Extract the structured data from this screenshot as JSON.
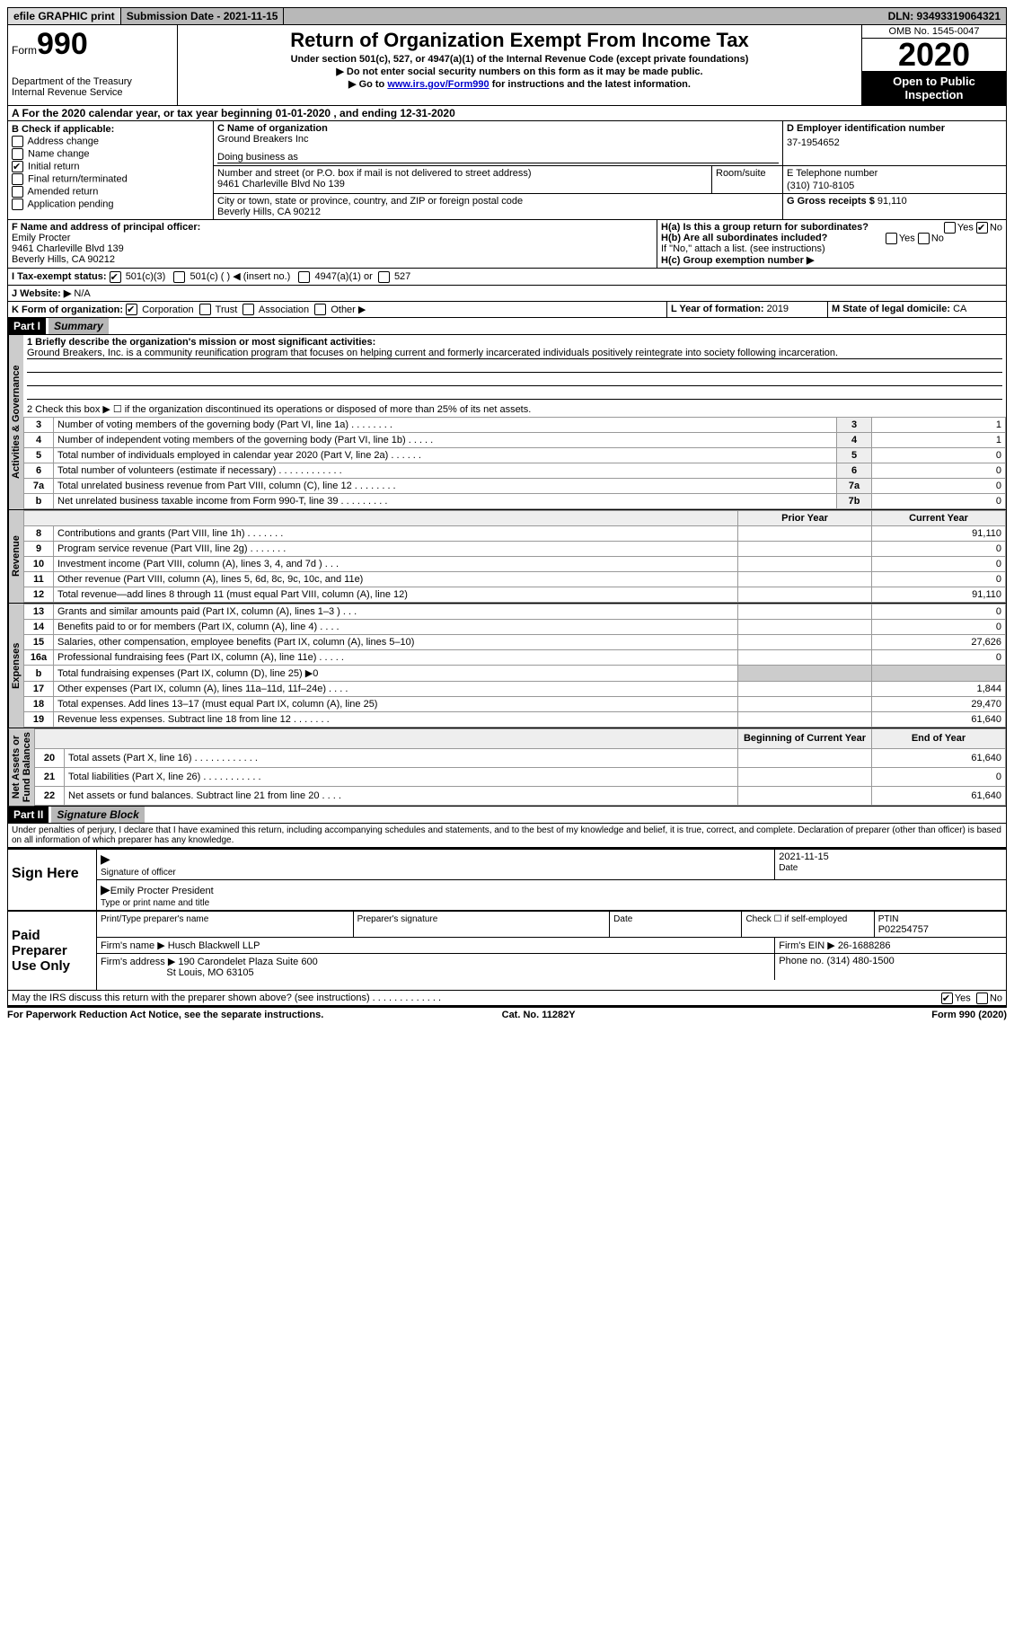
{
  "topbar": {
    "efile": "efile GRAPHIC print",
    "submission": "Submission Date - 2021-11-15",
    "dln": "DLN: 93493319064321"
  },
  "header": {
    "form_small": "Form",
    "form_big": "990",
    "title": "Return of Organization Exempt From Income Tax",
    "sub1": "Under section 501(c), 527, or 4947(a)(1) of the Internal Revenue Code (except private foundations)",
    "sub2": "▶ Do not enter social security numbers on this form as it may be made public.",
    "sub3_a": "▶ Go to ",
    "sub3_link": "www.irs.gov/Form990",
    "sub3_b": " for instructions and the latest information.",
    "dept": "Department of the Treasury\nInternal Revenue Service",
    "omb": "OMB No. 1545-0047",
    "year": "2020",
    "open": "Open to Public Inspection"
  },
  "secA": "A For the 2020 calendar year, or tax year beginning 01-01-2020    , and ending 12-31-2020",
  "boxB": {
    "label": "B Check if applicable:",
    "items": [
      "Address change",
      "Name change",
      "Initial return",
      "Final return/terminated",
      "Amended return",
      "Application pending"
    ],
    "checked_idx": 2
  },
  "boxC": {
    "label": "C Name of organization",
    "org": "Ground Breakers Inc",
    "dba_label": "Doing business as",
    "street_label": "Number and street (or P.O. box if mail is not delivered to street address)",
    "room_label": "Room/suite",
    "street": "9461 Charleville Blvd No 139",
    "city_label": "City or town, state or province, country, and ZIP or foreign postal code",
    "city": "Beverly Hills, CA  90212"
  },
  "boxD": {
    "label": "D Employer identification number",
    "val": "37-1954652"
  },
  "boxE": {
    "label": "E Telephone number",
    "val": "(310) 710-8105"
  },
  "boxG": {
    "label": "G Gross receipts $",
    "val": "91,110"
  },
  "boxF": {
    "label": "F Name and address of principal officer:",
    "name": "Emily Procter",
    "addr1": "9461 Charleville Blvd 139",
    "addr2": "Beverly Hills, CA  90212"
  },
  "boxH": {
    "ha": "H(a)  Is this a group return for subordinates?",
    "hb": "H(b)  Are all subordinates included?",
    "hb_note": "If \"No,\" attach a list. (see instructions)",
    "hc": "H(c)  Group exemption number ▶",
    "yes": "Yes",
    "no": "No"
  },
  "boxI": {
    "label": "I Tax-exempt status:",
    "o1": "501(c)(3)",
    "o2": "501(c) (  ) ◀ (insert no.)",
    "o3": "4947(a)(1) or",
    "o4": "527"
  },
  "boxJ": {
    "label": "J   Website: ▶",
    "val": "N/A"
  },
  "boxK": {
    "label": "K Form of organization:",
    "o1": "Corporation",
    "o2": "Trust",
    "o3": "Association",
    "o4": "Other ▶"
  },
  "boxL": {
    "label": "L Year of formation:",
    "val": "2019"
  },
  "boxM": {
    "label": "M State of legal domicile:",
    "val": "CA"
  },
  "part1": {
    "num": "Part I",
    "title": "Summary"
  },
  "mission": {
    "line": "1  Briefly describe the organization's mission or most significant activities:",
    "text": "Ground Breakers, Inc. is a community reunification program that focuses on helping current and formerly incarcerated individuals positively reintegrate into society following incarceration."
  },
  "line2": "2    Check this box ▶ ☐  if the organization discontinued its operations or disposed of more than 25% of its net assets.",
  "gov_rows": [
    {
      "n": "3",
      "d": "Number of voting members of the governing body (Part VI, line 1a)   .    .    .    .    .    .    .    .",
      "rn": "3",
      "v": "1"
    },
    {
      "n": "4",
      "d": "Number of independent voting members of the governing body (Part VI, line 1b)    .    .    .    .    .",
      "rn": "4",
      "v": "1"
    },
    {
      "n": "5",
      "d": "Total number of individuals employed in calendar year 2020 (Part V, line 2a)    .    .    .    .    .    .",
      "rn": "5",
      "v": "0"
    },
    {
      "n": "6",
      "d": "Total number of volunteers (estimate if necessary)    .    .    .    .    .    .    .    .    .    .    .    .",
      "rn": "6",
      "v": "0"
    },
    {
      "n": "7a",
      "d": "Total unrelated business revenue from Part VIII, column (C), line 12   .    .    .    .    .    .    .    .",
      "rn": "7a",
      "v": "0"
    },
    {
      "n": "b",
      "d": "Net unrelated business taxable income from Form 990-T, line 39   .    .    .    .    .    .    .    .    .",
      "rn": "7b",
      "v": "0"
    }
  ],
  "col_hdr": {
    "prior": "Prior Year",
    "curr": "Current Year",
    "boy": "Beginning of Current Year",
    "eoy": "End of Year"
  },
  "rev_rows": [
    {
      "n": "8",
      "d": "Contributions and grants (Part VIII, line 1h)   .    .    .    .    .    .    .",
      "p": "",
      "c": "91,110"
    },
    {
      "n": "9",
      "d": "Program service revenue (Part VIII, line 2g)   .    .    .    .    .    .    .",
      "p": "",
      "c": "0"
    },
    {
      "n": "10",
      "d": "Investment income (Part VIII, column (A), lines 3, 4, and 7d )   .    .    .",
      "p": "",
      "c": "0"
    },
    {
      "n": "11",
      "d": "Other revenue (Part VIII, column (A), lines 5, 6d, 8c, 9c, 10c, and 11e)",
      "p": "",
      "c": "0"
    },
    {
      "n": "12",
      "d": "Total revenue—add lines 8 through 11 (must equal Part VIII, column (A), line 12)",
      "p": "",
      "c": "91,110"
    }
  ],
  "exp_rows": [
    {
      "n": "13",
      "d": "Grants and similar amounts paid (Part IX, column (A), lines 1–3 )   .    .    .",
      "p": "",
      "c": "0"
    },
    {
      "n": "14",
      "d": "Benefits paid to or for members (Part IX, column (A), line 4)   .    .    .    .",
      "p": "",
      "c": "0"
    },
    {
      "n": "15",
      "d": "Salaries, other compensation, employee benefits (Part IX, column (A), lines 5–10)",
      "p": "",
      "c": "27,626"
    },
    {
      "n": "16a",
      "d": "Professional fundraising fees (Part IX, column (A), line 11e)   .    .    .    .    .",
      "p": "",
      "c": "0"
    },
    {
      "n": "b",
      "d": "Total fundraising expenses (Part IX, column (D), line 25) ▶0",
      "p": "grey",
      "c": "grey"
    },
    {
      "n": "17",
      "d": "Other expenses (Part IX, column (A), lines 11a–11d, 11f–24e)   .    .    .    .",
      "p": "",
      "c": "1,844"
    },
    {
      "n": "18",
      "d": "Total expenses. Add lines 13–17 (must equal Part IX, column (A), line 25)",
      "p": "",
      "c": "29,470"
    },
    {
      "n": "19",
      "d": "Revenue less expenses. Subtract line 18 from line 12   .    .    .    .    .    .    .",
      "p": "",
      "c": "61,640"
    }
  ],
  "na_rows": [
    {
      "n": "20",
      "d": "Total assets (Part X, line 16)   .    .    .    .    .    .    .    .    .    .    .    .",
      "p": "",
      "c": "61,640"
    },
    {
      "n": "21",
      "d": "Total liabilities (Part X, line 26)   .    .    .    .    .    .    .    .    .    .    .",
      "p": "",
      "c": "0"
    },
    {
      "n": "22",
      "d": "Net assets or fund balances. Subtract line 21 from line 20   .    .    .    .",
      "p": "",
      "c": "61,640"
    }
  ],
  "side": {
    "gov": "Activities & Governance",
    "rev": "Revenue",
    "exp": "Expenses",
    "na": "Net Assets or\nFund Balances"
  },
  "part2": {
    "num": "Part II",
    "title": "Signature Block"
  },
  "perjury": "Under penalties of perjury, I declare that I have examined this return, including accompanying schedules and statements, and to the best of my knowledge and belief, it is true, correct, and complete. Declaration of preparer (other than officer) is based on all information of which preparer has any knowledge.",
  "sign": {
    "here": "Sign Here",
    "sig_of": "Signature of officer",
    "date": "2021-11-15",
    "date_lbl": "Date",
    "name": "Emily Procter President",
    "name_lbl": "Type or print name and title"
  },
  "prep": {
    "label": "Paid Preparer Use Only",
    "h1": "Print/Type preparer's name",
    "h2": "Preparer's signature",
    "h3": "Date",
    "h4": "Check ☐ if self-employed",
    "h5": "PTIN",
    "ptin": "P02254757",
    "firm_lbl": "Firm's name    ▶",
    "firm": "Husch Blackwell LLP",
    "ein_lbl": "Firm's EIN ▶",
    "ein": "26-1688286",
    "addr_lbl": "Firm's address ▶",
    "addr1": "190 Carondelet Plaza Suite 600",
    "addr2": "St Louis, MO  63105",
    "phone_lbl": "Phone no.",
    "phone": "(314) 480-1500"
  },
  "discuss": "May the IRS discuss this return with the preparer shown above? (see instructions)   .    .    .    .    .    .    .    .    .    .    .    .    .",
  "foot": {
    "l": "For Paperwork Reduction Act Notice, see the separate instructions.",
    "m": "Cat. No. 11282Y",
    "r": "Form 990 (2020)"
  }
}
